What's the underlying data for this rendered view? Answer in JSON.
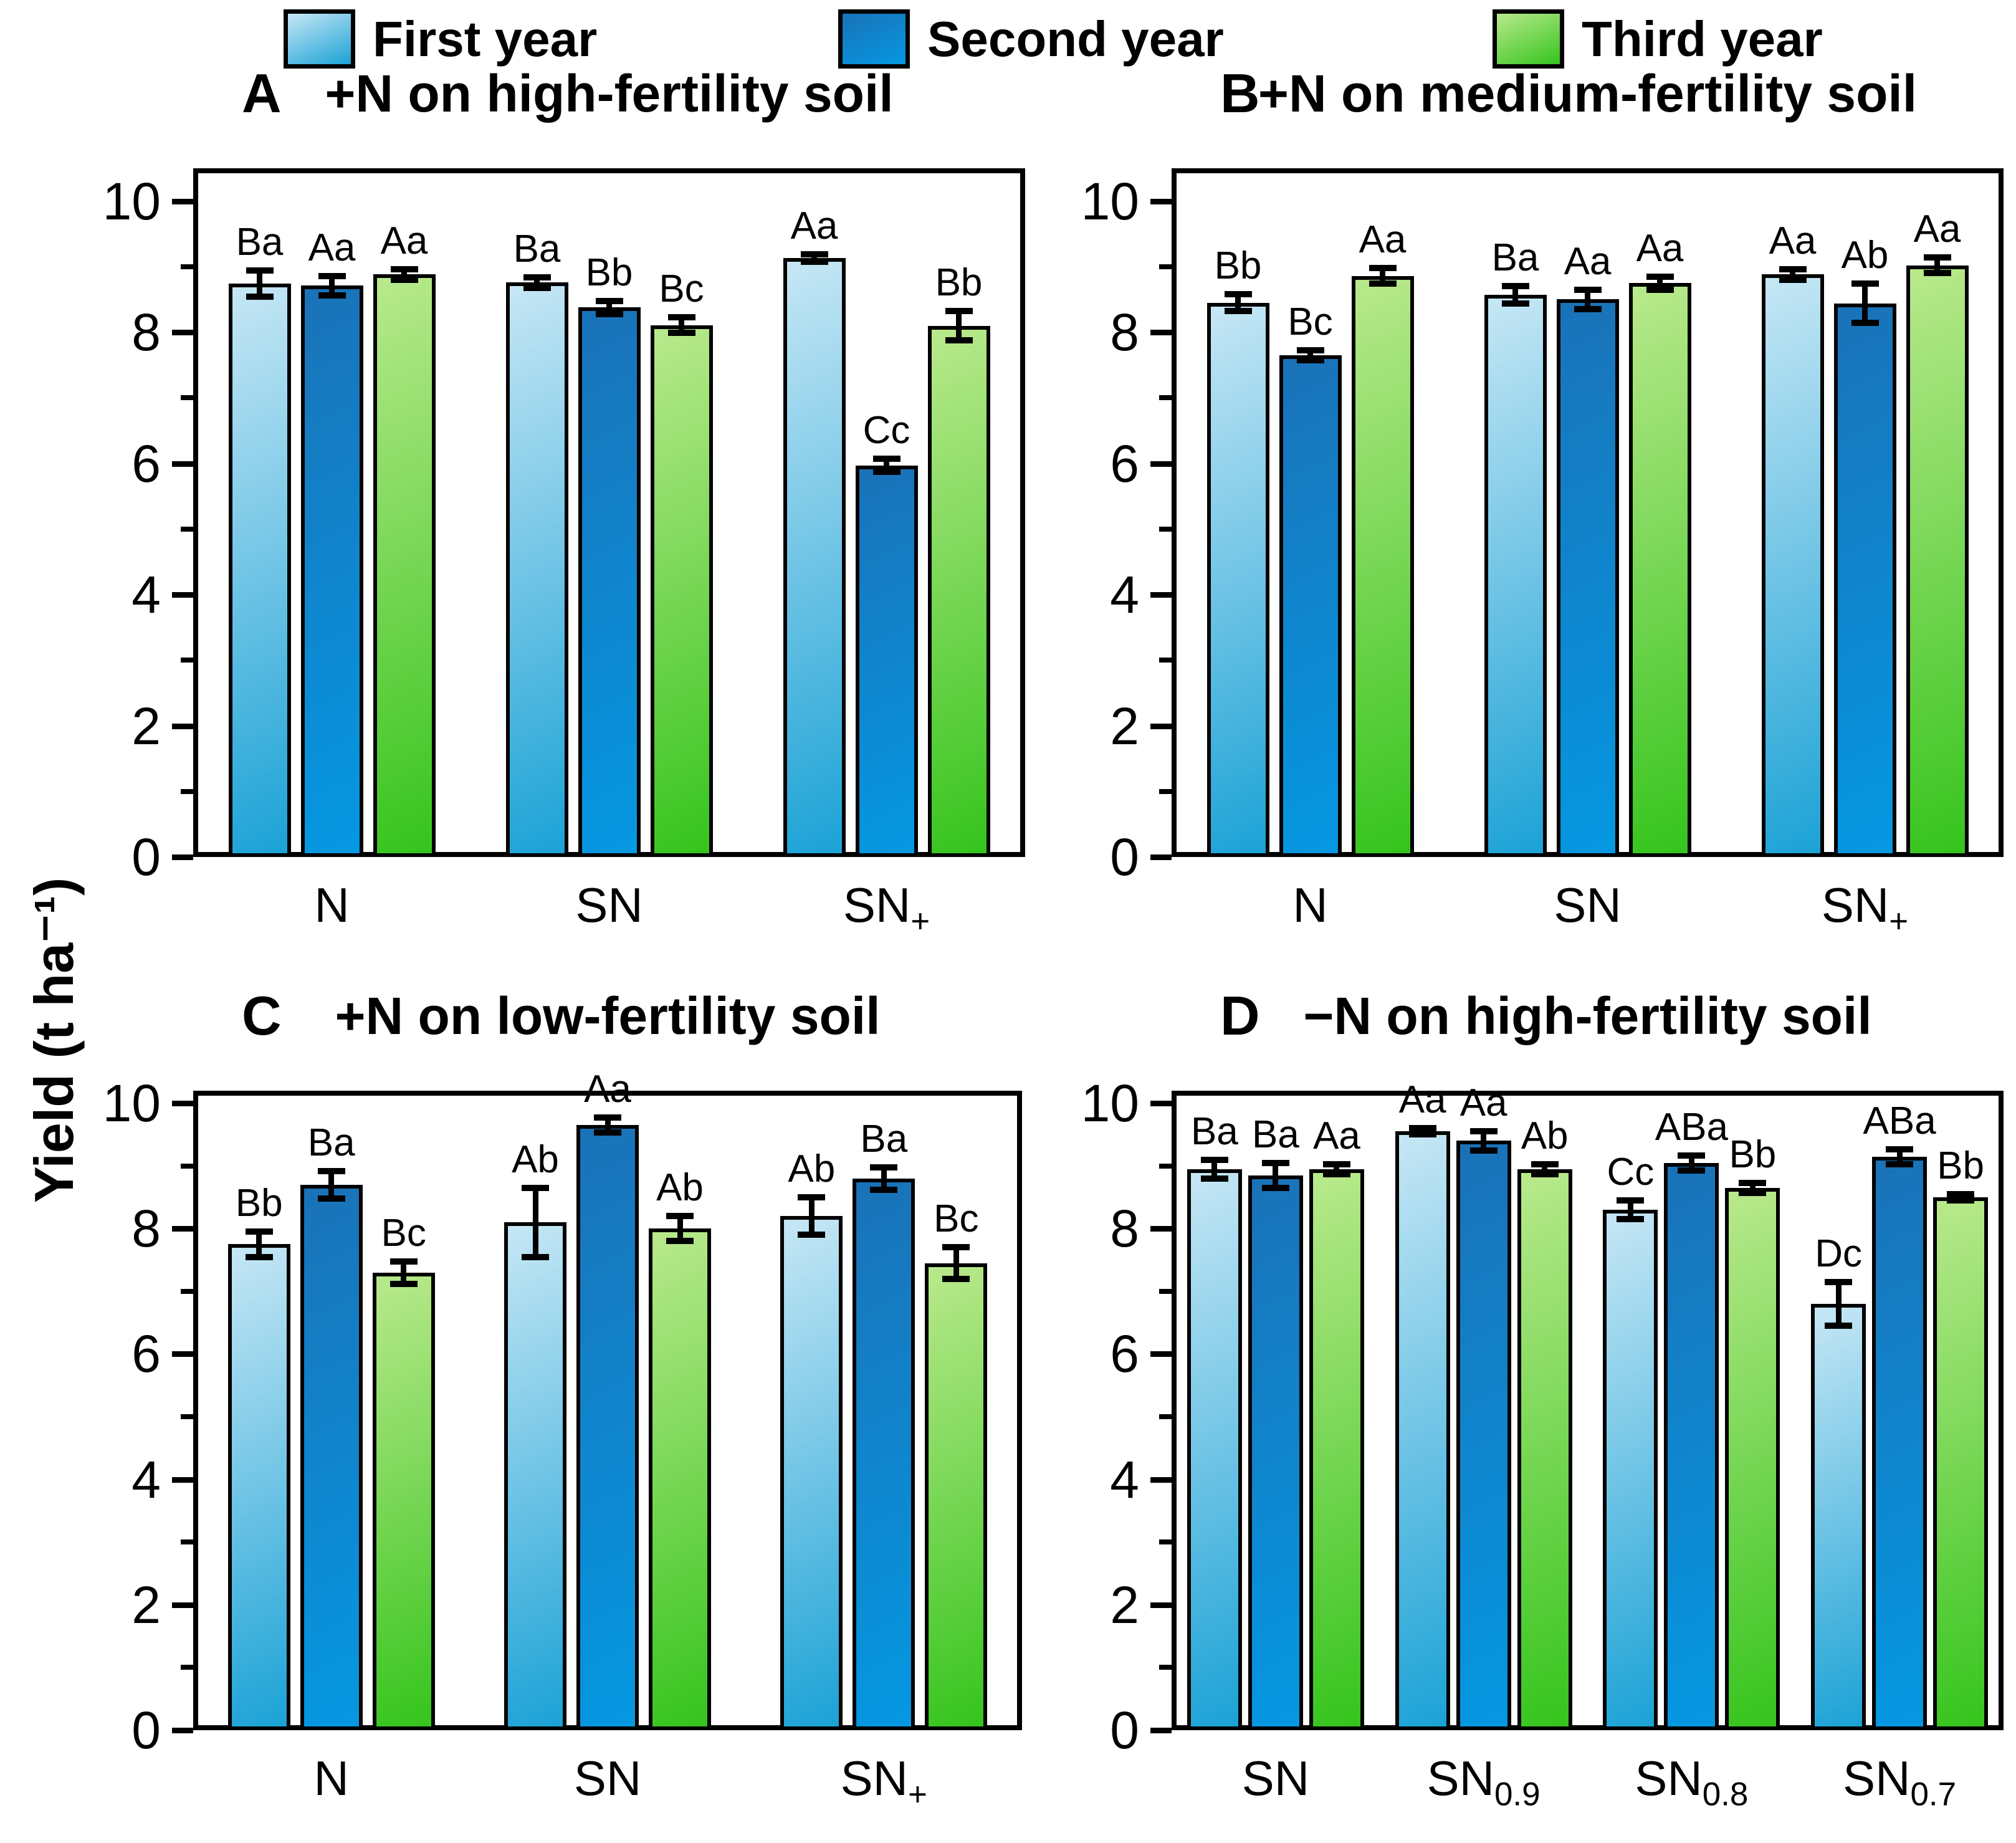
{
  "legend": {
    "items": [
      {
        "label": "First year"
      },
      {
        "label": "Second year"
      },
      {
        "label": "Third year"
      }
    ]
  },
  "colors": {
    "first_year": [
      "#c6e7f5",
      "#1ba2d6"
    ],
    "second_year": [
      "#1a72b8",
      "#0598e2"
    ],
    "third_year": [
      "#b9e98c",
      "#35c41d"
    ],
    "axis": "#000000"
  },
  "y_axis": {
    "label": "Yield (t ha⁻¹)",
    "major_tick_values": [
      0,
      2,
      4,
      6,
      8,
      10
    ],
    "major_tick_labels": [
      "0",
      "2",
      "4",
      "6",
      "8",
      "10"
    ],
    "minor_tick_values": [
      1,
      3,
      5,
      7,
      9
    ]
  },
  "chart_data": {
    "type": "bar",
    "series": [
      "First year",
      "Second year",
      "Third year"
    ],
    "grid": "off",
    "legend_position": "top",
    "panels": [
      {
        "id": "A",
        "letter": "A",
        "title": "+N on high-fertility soil",
        "ylim": [
          0,
          10.5
        ],
        "groups": [
          {
            "label": {
              "main": "N",
              "sub": ""
            },
            "bars": [
              {
                "series": "First year",
                "value": 8.74,
                "error": 0.2,
                "sig": "Ba"
              },
              {
                "series": "Second year",
                "value": 8.71,
                "error": 0.15,
                "sig": "Aa"
              },
              {
                "series": "Third year",
                "value": 8.88,
                "error": 0.08,
                "sig": "Aa"
              }
            ]
          },
          {
            "label": {
              "main": "SN",
              "sub": ""
            },
            "bars": [
              {
                "series": "First year",
                "value": 8.76,
                "error": 0.08,
                "sig": "Ba"
              },
              {
                "series": "Second year",
                "value": 8.38,
                "error": 0.1,
                "sig": "Bb"
              },
              {
                "series": "Third year",
                "value": 8.11,
                "error": 0.12,
                "sig": "Bc"
              }
            ]
          },
          {
            "label": {
              "main": "SN",
              "sub": "+"
            },
            "bars": [
              {
                "series": "First year",
                "value": 9.13,
                "error": 0.06,
                "sig": "Aa"
              },
              {
                "series": "Second year",
                "value": 5.97,
                "error": 0.1,
                "sig": "Cc"
              },
              {
                "series": "Third year",
                "value": 8.1,
                "error": 0.22,
                "sig": "Bb"
              }
            ]
          }
        ]
      },
      {
        "id": "B",
        "letter": "B",
        "title": "+N on medium-fertility soil",
        "ylim": [
          0,
          10.5
        ],
        "groups": [
          {
            "label": {
              "main": "N",
              "sub": ""
            },
            "bars": [
              {
                "series": "First year",
                "value": 8.45,
                "error": 0.13,
                "sig": "Bb"
              },
              {
                "series": "Second year",
                "value": 7.65,
                "error": 0.08,
                "sig": "Bc"
              },
              {
                "series": "Third year",
                "value": 8.86,
                "error": 0.12,
                "sig": "Aa"
              }
            ]
          },
          {
            "label": {
              "main": "SN",
              "sub": ""
            },
            "bars": [
              {
                "series": "First year",
                "value": 8.57,
                "error": 0.13,
                "sig": "Ba"
              },
              {
                "series": "Second year",
                "value": 8.5,
                "error": 0.15,
                "sig": "Aa"
              },
              {
                "series": "Third year",
                "value": 8.75,
                "error": 0.1,
                "sig": "Aa"
              }
            ]
          },
          {
            "label": {
              "main": "SN",
              "sub": "+"
            },
            "bars": [
              {
                "series": "First year",
                "value": 8.88,
                "error": 0.08,
                "sig": "Aa"
              },
              {
                "series": "Second year",
                "value": 8.44,
                "error": 0.3,
                "sig": "Ab"
              },
              {
                "series": "Third year",
                "value": 9.02,
                "error": 0.12,
                "sig": "Aa"
              }
            ]
          }
        ]
      },
      {
        "id": "C",
        "letter": "C",
        "title": "+N on low-fertility soil",
        "ylim": [
          0,
          10.2
        ],
        "groups": [
          {
            "label": {
              "main": "N",
              "sub": ""
            },
            "bars": [
              {
                "series": "First year",
                "value": 7.75,
                "error": 0.2,
                "sig": "Bb"
              },
              {
                "series": "Second year",
                "value": 8.7,
                "error": 0.22,
                "sig": "Ba"
              },
              {
                "series": "Third year",
                "value": 7.3,
                "error": 0.18,
                "sig": "Bc"
              }
            ]
          },
          {
            "label": {
              "main": "SN",
              "sub": ""
            },
            "bars": [
              {
                "series": "First year",
                "value": 8.1,
                "error": 0.55,
                "sig": "Ab"
              },
              {
                "series": "Second year",
                "value": 9.65,
                "error": 0.12,
                "sig": "Aa"
              },
              {
                "series": "Third year",
                "value": 8.0,
                "error": 0.2,
                "sig": "Ab"
              }
            ]
          },
          {
            "label": {
              "main": "SN",
              "sub": "+"
            },
            "bars": [
              {
                "series": "First year",
                "value": 8.2,
                "error": 0.3,
                "sig": "Ab"
              },
              {
                "series": "Second year",
                "value": 8.8,
                "error": 0.18,
                "sig": "Ba"
              },
              {
                "series": "Third year",
                "value": 7.45,
                "error": 0.25,
                "sig": "Bc"
              }
            ]
          }
        ]
      },
      {
        "id": "D",
        "letter": "D",
        "title": "−N on high-fertility soil",
        "ylim": [
          0,
          10.2
        ],
        "groups": [
          {
            "label": {
              "main": "SN",
              "sub": ""
            },
            "bars": [
              {
                "series": "First year",
                "value": 8.95,
                "error": 0.15,
                "sig": "Ba"
              },
              {
                "series": "Second year",
                "value": 8.85,
                "error": 0.2,
                "sig": "Ba"
              },
              {
                "series": "Third year",
                "value": 8.95,
                "error": 0.08,
                "sig": "Aa"
              }
            ]
          },
          {
            "label": {
              "main": "SN",
              "sub": "0.9"
            },
            "bars": [
              {
                "series": "First year",
                "value": 9.55,
                "error": 0.05,
                "sig": "Aa"
              },
              {
                "series": "Second year",
                "value": 9.4,
                "error": 0.15,
                "sig": "Aa"
              },
              {
                "series": "Third year",
                "value": 8.95,
                "error": 0.08,
                "sig": "Ab"
              }
            ]
          },
          {
            "label": {
              "main": "SN",
              "sub": "0.8"
            },
            "bars": [
              {
                "series": "First year",
                "value": 8.3,
                "error": 0.15,
                "sig": "Cc"
              },
              {
                "series": "Second year",
                "value": 9.05,
                "error": 0.12,
                "sig": "ABa"
              },
              {
                "series": "Third year",
                "value": 8.65,
                "error": 0.08,
                "sig": "Bb"
              }
            ]
          },
          {
            "label": {
              "main": "SN",
              "sub": "0.7"
            },
            "bars": [
              {
                "series": "First year",
                "value": 6.8,
                "error": 0.35,
                "sig": "Dc"
              },
              {
                "series": "Second year",
                "value": 9.15,
                "error": 0.12,
                "sig": "ABa"
              },
              {
                "series": "Third year",
                "value": 8.5,
                "error": 0.05,
                "sig": "Bb"
              }
            ]
          }
        ]
      }
    ]
  }
}
